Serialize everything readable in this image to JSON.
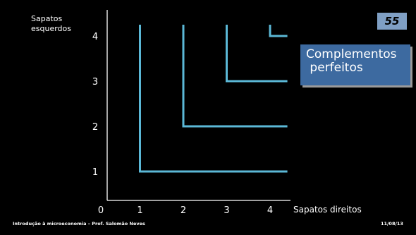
{
  "slide": {
    "page_number": "55",
    "callout": "Complementos\n perfeitos",
    "footer_left": "Introdução à microeconomia – Prof. Salomão Neves",
    "footer_right": "11/08/13",
    "colors": {
      "background": "#000000",
      "curve": "#5bb8d6",
      "axis": "#ffffff",
      "callout_fill": "#3d6aa0",
      "badge_fill": "#7f9fc4"
    }
  },
  "chart_data": {
    "type": "line",
    "ylabel": "Sapatos\nesquerdos",
    "xlabel": "Sapatos direitos",
    "xlim": [
      0,
      4.3
    ],
    "ylim": [
      0,
      4.3
    ],
    "x_ticks": [
      "0",
      "1",
      "2",
      "3",
      "4"
    ],
    "y_ticks": [
      "1",
      "2",
      "3",
      "4"
    ],
    "grid": false,
    "series": [
      {
        "points": [
          [
            1,
            4.25
          ],
          [
            1,
            1
          ],
          [
            4.4,
            1
          ]
        ]
      },
      {
        "points": [
          [
            2,
            4.25
          ],
          [
            2,
            2
          ],
          [
            4.4,
            2
          ]
        ]
      },
      {
        "points": [
          [
            3,
            4.25
          ],
          [
            3,
            3
          ],
          [
            4.4,
            3
          ]
        ]
      },
      {
        "points": [
          [
            4,
            4.25
          ],
          [
            4,
            4
          ],
          [
            4.4,
            4
          ]
        ]
      }
    ]
  }
}
